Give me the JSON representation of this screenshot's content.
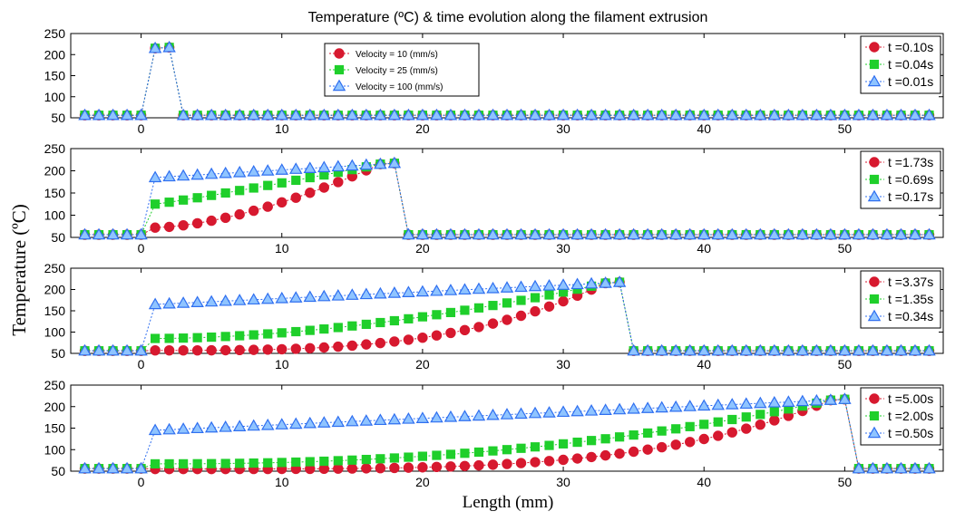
{
  "title": "Temperature (ºC) & time evolution along the filament extrusion",
  "ylabel": "Temperature  (ºC)",
  "xlabel": "Length  (mm)",
  "colors": {
    "red": "#d7192f",
    "green": "#1fcf2b",
    "blue": "#2f6ff0",
    "blue_fill": "#8fc4ff",
    "axis": "#000000"
  },
  "velocity_legend": [
    {
      "label": "Velocity = 10 (mm/s)",
      "color": "red",
      "marker": "circle"
    },
    {
      "label": "Velocity = 25 (mm/s)",
      "color": "green",
      "marker": "square"
    },
    {
      "label": "Velocity = 100 (mm/s)",
      "color": "blue",
      "marker": "triangle"
    }
  ],
  "chart_data": [
    {
      "type": "line",
      "front_mm": 1,
      "ylim": [
        50,
        250
      ],
      "xlim": [
        -5,
        57
      ],
      "yticks": [
        50,
        100,
        150,
        200,
        250
      ],
      "xticks": [
        0,
        10,
        20,
        30,
        40,
        50
      ],
      "series": [
        {
          "name": "t =0.10s",
          "velocity": 10,
          "start": 215,
          "end": 215,
          "exponent": 1
        },
        {
          "name": "t =0.04s",
          "velocity": 25,
          "start": 215,
          "end": 215,
          "exponent": 1
        },
        {
          "name": "t =0.01s",
          "velocity": 100,
          "start": 215,
          "end": 215,
          "exponent": 1
        }
      ]
    },
    {
      "type": "line",
      "front_mm": 17,
      "ylim": [
        50,
        250
      ],
      "xlim": [
        -5,
        57
      ],
      "yticks": [
        50,
        100,
        150,
        200,
        250
      ],
      "xticks": [
        0,
        10,
        20,
        30,
        40,
        50
      ],
      "series": [
        {
          "name": "t =1.73s",
          "velocity": 10,
          "start": 72,
          "end": 215,
          "exponent": 1.6
        },
        {
          "name": "t =0.69s",
          "velocity": 25,
          "start": 125,
          "end": 215,
          "exponent": 1.1
        },
        {
          "name": "t =0.17s",
          "velocity": 100,
          "start": 185,
          "end": 215,
          "exponent": 1.0
        }
      ]
    },
    {
      "type": "line",
      "front_mm": 33,
      "ylim": [
        50,
        250
      ],
      "xlim": [
        -5,
        57
      ],
      "yticks": [
        50,
        100,
        150,
        200,
        250
      ],
      "xticks": [
        0,
        10,
        20,
        30,
        40,
        50
      ],
      "series": [
        {
          "name": "t =3.37s",
          "velocity": 10,
          "start": 57,
          "end": 215,
          "exponent": 3.2
        },
        {
          "name": "t =1.35s",
          "velocity": 25,
          "start": 85,
          "end": 215,
          "exponent": 1.8
        },
        {
          "name": "t =0.34s",
          "velocity": 100,
          "start": 165,
          "end": 215,
          "exponent": 1.0
        }
      ]
    },
    {
      "type": "line",
      "front_mm": 49,
      "ylim": [
        50,
        250
      ],
      "xlim": [
        -5,
        57
      ],
      "yticks": [
        50,
        100,
        150,
        200,
        250
      ],
      "xticks": [
        0,
        10,
        20,
        30,
        40,
        50
      ],
      "series": [
        {
          "name": "t =5.00s",
          "velocity": 10,
          "start": 55,
          "end": 215,
          "exponent": 4.0
        },
        {
          "name": "t =2.00s",
          "velocity": 25,
          "start": 67,
          "end": 215,
          "exponent": 2.3
        },
        {
          "name": "t =0.50s",
          "velocity": 100,
          "start": 145,
          "end": 215,
          "exponent": 1.0
        }
      ]
    }
  ]
}
